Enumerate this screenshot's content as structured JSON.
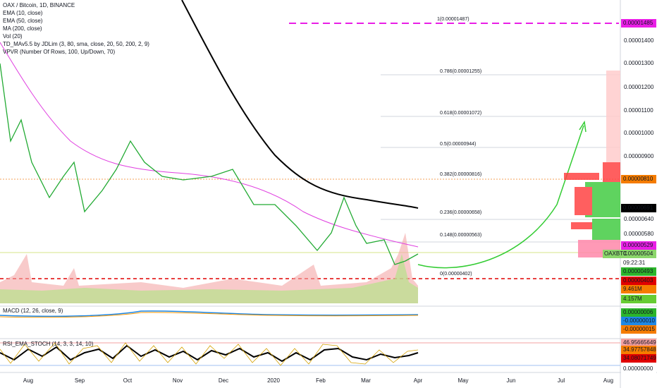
{
  "main_pane": {
    "legend": [
      "OAX / Bitcoin, 1D, BINANCE",
      "EMA (10, close)",
      "EMA (50, close)",
      "MA (200, close)",
      "Vol (20)",
      "TD_MAv5.5 by JDLim (3, 80, sma, close, 20, 50, 200, 2, 9)",
      "VPVR (Number Of Rows, 100, Up/Down, 70)"
    ],
    "fib_levels": [
      "1(0.00001487)",
      "0.786(0.00001255)",
      "0.618(0.00001072)",
      "0.5(0.00000944)",
      "0.382(0.00000816)",
      "0.236(0.00000658)",
      "0.148(0.00000563)",
      "0(0.00000402)"
    ],
    "price_scale": [
      "0.00001400",
      "0.00001300",
      "0.00001200",
      "0.00001100",
      "0.00001000",
      "0.00000900",
      "0.00000640",
      "0.00000580"
    ],
    "price_tags": [
      {
        "label": "0.00001485"
      },
      {
        "label": "0.00000810"
      },
      {
        "label": "0.00000691"
      },
      {
        "label": "0.00000529"
      },
      {
        "symbol": "OAXBTC",
        "label": "0.00000504"
      },
      {
        "label": "09:22:31"
      },
      {
        "label": "0.00000493"
      },
      {
        "label": "0.00000403"
      },
      {
        "label": "9.461M"
      },
      {
        "label": "4.157M"
      }
    ]
  },
  "macd_pane": {
    "legend": "MACD (12, 26, close, 9)",
    "tags": [
      "0.00000006",
      "-0.00000010",
      "-0.00000015"
    ]
  },
  "rsi_pane": {
    "legend": "RSI_EMA_STOCH (14, 3, 3, 14, 10)",
    "tags": [
      "46.95665649",
      "34.97757848",
      "34.08071749",
      "0.00000000"
    ]
  },
  "time_axis": [
    "Aug",
    "Sep",
    "Oct",
    "Nov",
    "Dec",
    "2020",
    "Feb",
    "Mar",
    "Apr",
    "May",
    "Jun",
    "Jul",
    "Aug"
  ]
}
